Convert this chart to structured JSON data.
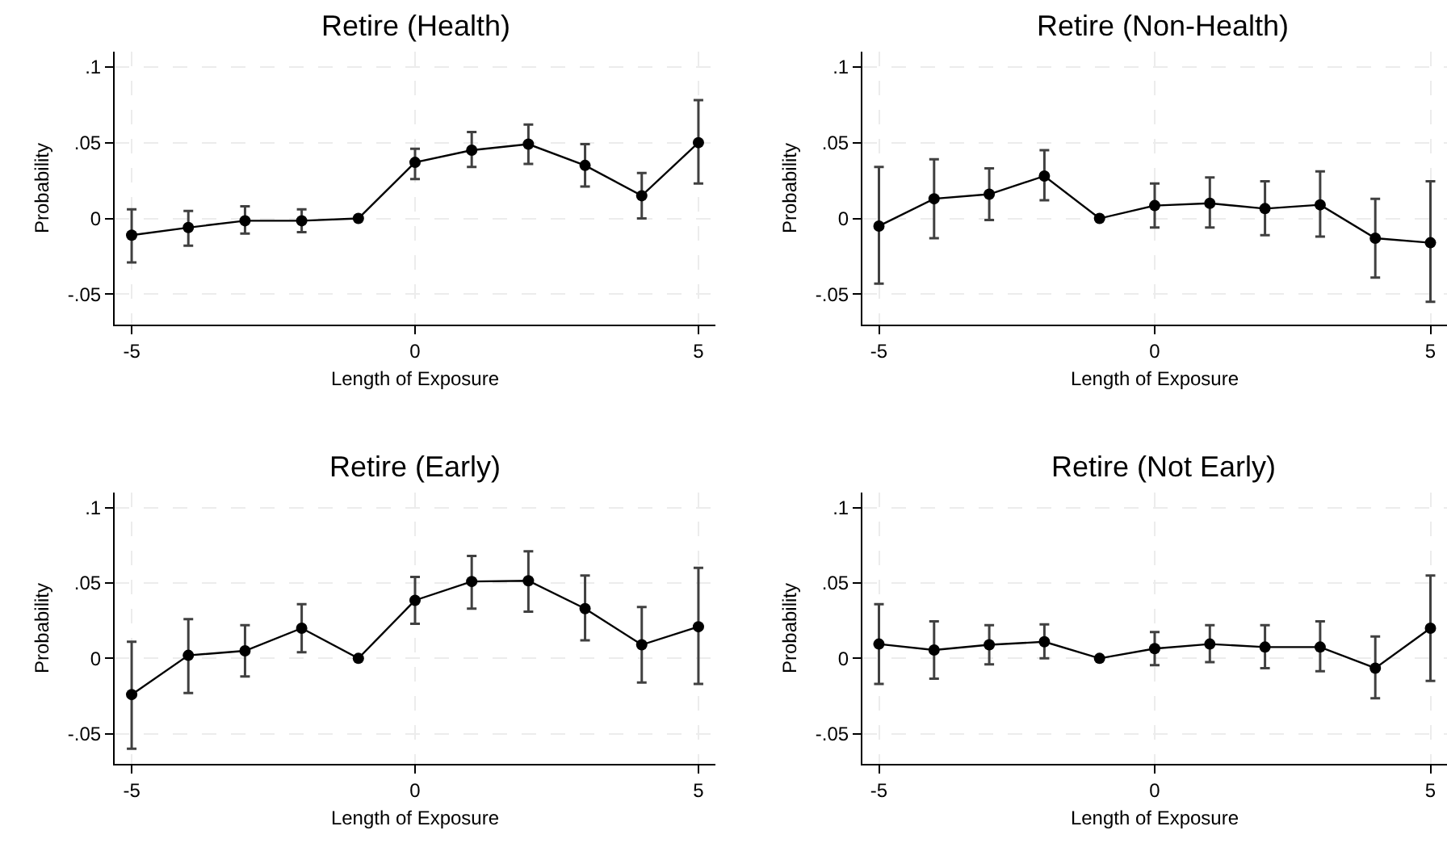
{
  "chart_data": [
    {
      "type": "line",
      "title": "Retire (Health)",
      "xlabel": "Length of Exposure",
      "ylabel": "Probability",
      "x": [
        -5,
        -4,
        -3,
        -2,
        -1,
        0,
        1,
        2,
        3,
        4,
        5
      ],
      "color": "#000000",
      "marker": "circle",
      "line_style": "solid",
      "grid": true,
      "legend": false,
      "xlim": [
        -5.3,
        5.3
      ],
      "ylim": [
        -0.07,
        0.11
      ],
      "xticks": [
        -5,
        0,
        5
      ],
      "yticks": [
        {
          "value": -0.05,
          "label": "-.05"
        },
        0,
        {
          "value": 0.05,
          "label": ".05"
        },
        {
          "value": 0.1,
          "label": ".1"
        }
      ],
      "values": [
        -0.011,
        -0.006,
        -0.0015,
        -0.0015,
        0,
        0.037,
        0.045,
        0.049,
        0.035,
        0.015,
        0.05
      ],
      "errors": [
        [
          -0.029,
          0.006
        ],
        [
          -0.018,
          0.005
        ],
        [
          -0.01,
          0.008
        ],
        [
          -0.009,
          0.006
        ],
        null,
        [
          0.026,
          0.046
        ],
        [
          0.034,
          0.057
        ],
        [
          0.036,
          0.062
        ],
        [
          0.021,
          0.049
        ],
        [
          0.0,
          0.03
        ],
        [
          0.023,
          0.078
        ]
      ]
    },
    {
      "type": "line",
      "title": "Retire (Non-Health)",
      "xlabel": "Length of Exposure",
      "ylabel": "Probability",
      "x": [
        -5,
        -4,
        -3,
        -2,
        -1,
        0,
        1,
        2,
        3,
        4,
        5
      ],
      "color": "#000000",
      "marker": "circle",
      "line_style": "solid",
      "grid": true,
      "legend": false,
      "xlim": [
        -5.3,
        5.3
      ],
      "ylim": [
        -0.07,
        0.11
      ],
      "xticks": [
        -5,
        0,
        5
      ],
      "yticks": [
        {
          "value": -0.05,
          "label": "-.05"
        },
        0,
        {
          "value": 0.05,
          "label": ".05"
        },
        {
          "value": 0.1,
          "label": ".1"
        }
      ],
      "values": [
        -0.005,
        0.013,
        0.016,
        0.028,
        0,
        0.0085,
        0.01,
        0.0065,
        0.009,
        -0.013,
        -0.016
      ],
      "errors": [
        [
          -0.043,
          0.034
        ],
        [
          -0.013,
          0.039
        ],
        [
          -0.001,
          0.033
        ],
        [
          0.012,
          0.045
        ],
        null,
        [
          -0.006,
          0.023
        ],
        [
          -0.006,
          0.027
        ],
        [
          -0.011,
          0.0245
        ],
        [
          -0.012,
          0.031
        ],
        [
          -0.039,
          0.013
        ],
        [
          -0.055,
          0.0245
        ]
      ]
    },
    {
      "type": "line",
      "title": "Retire (Early)",
      "xlabel": "Length of Exposure",
      "ylabel": "Probability",
      "x": [
        -5,
        -4,
        -3,
        -2,
        -1,
        0,
        1,
        2,
        3,
        4,
        5
      ],
      "color": "#000000",
      "marker": "circle",
      "line_style": "solid",
      "grid": true,
      "legend": false,
      "xlim": [
        -5.3,
        5.3
      ],
      "ylim": [
        -0.07,
        0.11
      ],
      "xticks": [
        -5,
        0,
        5
      ],
      "yticks": [
        {
          "value": -0.05,
          "label": "-.05"
        },
        0,
        {
          "value": 0.05,
          "label": ".05"
        },
        {
          "value": 0.1,
          "label": ".1"
        }
      ],
      "values": [
        -0.024,
        0.002,
        0.005,
        0.02,
        0,
        0.0385,
        0.051,
        0.0515,
        0.033,
        0.009,
        0.021
      ],
      "errors": [
        [
          -0.06,
          0.011
        ],
        [
          -0.023,
          0.026
        ],
        [
          -0.012,
          0.022
        ],
        [
          0.004,
          0.036
        ],
        null,
        [
          0.023,
          0.054
        ],
        [
          0.033,
          0.068
        ],
        [
          0.031,
          0.071
        ],
        [
          0.012,
          0.055
        ],
        [
          -0.016,
          0.034
        ],
        [
          -0.017,
          0.06
        ]
      ]
    },
    {
      "type": "line",
      "title": "Retire (Not Early)",
      "xlabel": "Length of Exposure",
      "ylabel": "Probability",
      "x": [
        -5,
        -4,
        -3,
        -2,
        -1,
        0,
        1,
        2,
        3,
        4,
        5
      ],
      "color": "#000000",
      "marker": "circle",
      "line_style": "solid",
      "grid": true,
      "legend": false,
      "xlim": [
        -5.3,
        5.3
      ],
      "ylim": [
        -0.07,
        0.11
      ],
      "xticks": [
        -5,
        0,
        5
      ],
      "yticks": [
        {
          "value": -0.05,
          "label": "-.05"
        },
        0,
        {
          "value": 0.05,
          "label": ".05"
        },
        {
          "value": 0.1,
          "label": ".1"
        }
      ],
      "values": [
        0.0095,
        0.0055,
        0.009,
        0.011,
        0,
        0.0065,
        0.0095,
        0.0075,
        0.0075,
        -0.0065,
        0.02
      ],
      "errors": [
        [
          -0.017,
          0.036
        ],
        [
          -0.0135,
          0.0245
        ],
        [
          -0.004,
          0.022
        ],
        [
          0.0,
          0.0225
        ],
        null,
        [
          -0.0045,
          0.0175
        ],
        [
          -0.0025,
          0.022
        ],
        [
          -0.0065,
          0.022
        ],
        [
          -0.0085,
          0.0245
        ],
        [
          -0.0265,
          0.0145
        ],
        [
          -0.015,
          0.055
        ]
      ]
    }
  ]
}
